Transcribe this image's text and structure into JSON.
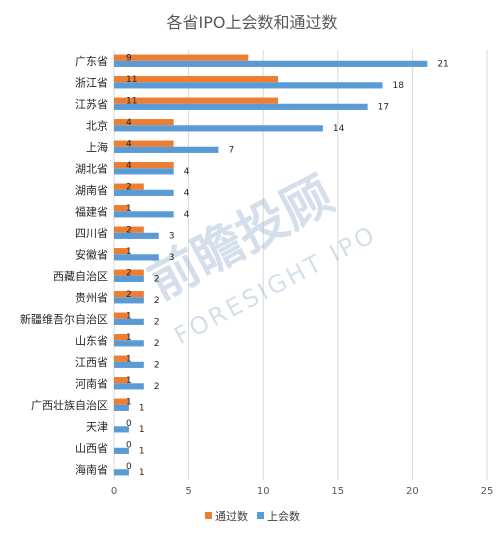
{
  "chart_data": {
    "type": "bar",
    "orientation": "horizontal",
    "title": "各省IPO上会数和通过数",
    "categories": [
      "广东省",
      "浙江省",
      "江苏省",
      "北京",
      "上海",
      "湖北省",
      "湖南省",
      "福建省",
      "四川省",
      "安徽省",
      "西藏自治区",
      "贵州省",
      "新疆维吾尔自治区",
      "山东省",
      "江西省",
      "河南省",
      "广西壮族自治区",
      "天津",
      "山西省",
      "海南省"
    ],
    "series": [
      {
        "name": "通过数",
        "color": "#ed7d31",
        "values": [
          9,
          11,
          11,
          4,
          4,
          4,
          2,
          1,
          2,
          1,
          2,
          2,
          1,
          1,
          1,
          1,
          1,
          0,
          0,
          0
        ]
      },
      {
        "name": "上会数",
        "color": "#5b9bd5",
        "values": [
          21,
          18,
          17,
          14,
          7,
          4,
          4,
          4,
          3,
          3,
          2,
          2,
          2,
          2,
          2,
          2,
          1,
          1,
          1,
          1
        ]
      }
    ],
    "xlim": [
      0,
      25
    ],
    "xticks": [
      0,
      5,
      10,
      15,
      20,
      25
    ],
    "grid": true,
    "legend": "bottom"
  },
  "watermark": {
    "text_cn": "前瞻投顾",
    "text_en": "FORESIGHT IPO",
    "color": "#8aa6c8"
  }
}
